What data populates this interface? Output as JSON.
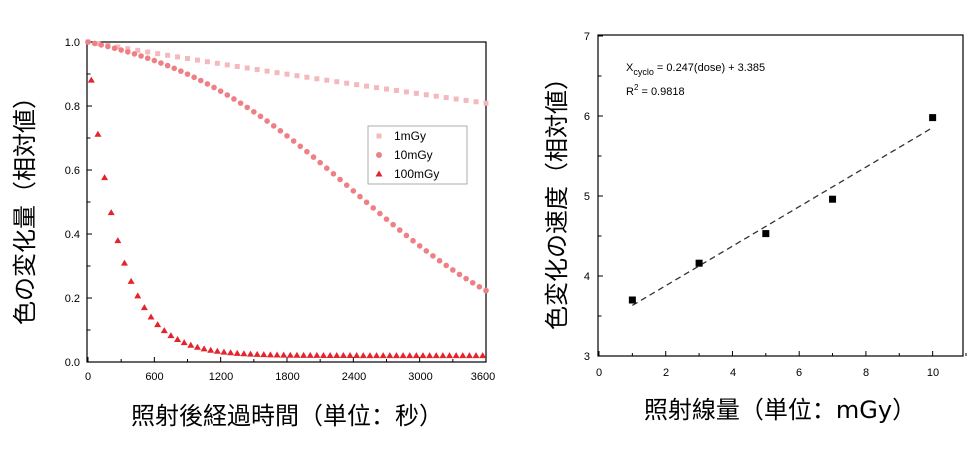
{
  "colors": {
    "light": "#f4b8bd",
    "medium": "#ee7f85",
    "strong": "#e4232c",
    "axis": "#000000",
    "fit": "#333333"
  },
  "chart_data": [
    {
      "type": "scatter",
      "title": "",
      "xlabel": "照射後経過時間（単位：秒）",
      "ylabel": "色の変化量（相対値）",
      "xlim": [
        0,
        3600
      ],
      "ylim": [
        0.0,
        1.0
      ],
      "xticks": [
        "0",
        "600",
        "1200",
        "1800",
        "2400",
        "3000",
        "3600"
      ],
      "yticks": [
        "0.0",
        "0.2",
        "0.4",
        "0.6",
        "0.8",
        "1.0"
      ],
      "grid": false,
      "legend_position": "center-right",
      "series": [
        {
          "name": "1mGy",
          "marker": "square",
          "color": "#f4b8bd",
          "model": "exp",
          "k": 5.89e-05,
          "x_start": 0,
          "x_end": 3600,
          "x_step": 90
        },
        {
          "name": "10mGy",
          "marker": "circle",
          "color": "#ee7f85",
          "model": "sigmoid",
          "midpoint": 2400,
          "width": 900,
          "x_start": 0,
          "x_end": 3600,
          "x_step": 60
        },
        {
          "name": "100mGy",
          "marker": "triangle",
          "color": "#e4232c",
          "model": "exp_offset",
          "amplitude": 0.96,
          "k": 0.00364,
          "offset": 0.02,
          "x_start": 30,
          "x_end": 3600,
          "x_step": 60
        }
      ]
    },
    {
      "type": "scatter",
      "title": "",
      "xlabel": "照射線量（単位：mGy）",
      "ylabel": "色変化の速度（相対値）",
      "xlim": [
        0,
        11
      ],
      "ylim": [
        3,
        7
      ],
      "xticks": [
        "0",
        "2",
        "4",
        "6",
        "8",
        "10"
      ],
      "yticks": [
        "3",
        "4",
        "5",
        "6",
        "7"
      ],
      "grid": false,
      "x": [
        1,
        3,
        5,
        7,
        10
      ],
      "y": [
        3.7,
        4.16,
        4.53,
        4.96,
        5.98
      ],
      "fit": {
        "slope": 0.247,
        "intercept": 3.385,
        "x_range": [
          1,
          10
        ]
      },
      "annotations": {
        "equation_prefix": "X",
        "equation_subscript": "cyclo",
        "equation_rest": " = 0.247(dose) + 3.385",
        "r2_prefix": "R",
        "r2_sup": "2",
        "r2_rest": " = 0.9818"
      }
    }
  ]
}
